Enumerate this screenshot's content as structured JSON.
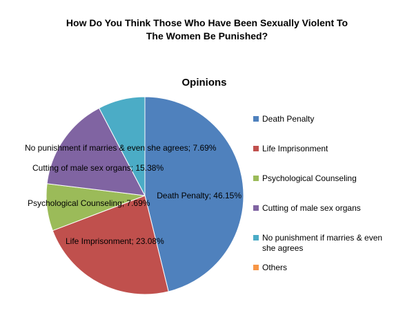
{
  "page": {
    "title_line1": "How Do You Think Those Who Have Been Sexually Violent To",
    "title_line2": "The Women Be Punished?"
  },
  "chart_data": {
    "type": "pie",
    "title": "Opinions",
    "legend_position": "right",
    "label_format": "{name}; {value}%",
    "slices": [
      {
        "name": "Death Penalty",
        "value": 46.15,
        "color": "#4F81BD"
      },
      {
        "name": "Life Imprisonment",
        "value": 23.08,
        "color": "#C0504D"
      },
      {
        "name": "Psychological Counseling",
        "value": 7.69,
        "color": "#9BBB59"
      },
      {
        "name": "Cutting of male sex organs",
        "value": 15.38,
        "color": "#8064A2"
      },
      {
        "name": "No punishment if marries & even she agrees",
        "value": 7.69,
        "color": "#4BACC6"
      },
      {
        "name": "Others",
        "value": 0,
        "color": "#F79646"
      }
    ]
  }
}
